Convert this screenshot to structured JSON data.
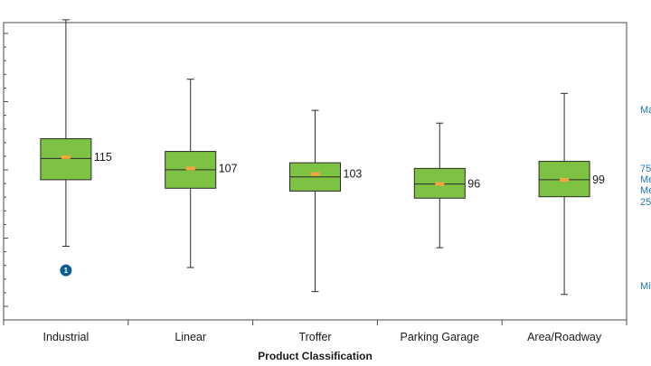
{
  "chart_data": {
    "type": "box",
    "xlabel": "Product Classification",
    "ylabel": "",
    "ylim": [
      0,
      210
    ],
    "grid": false,
    "colors": {
      "box": "#7dc242",
      "box_border": "#2b2b2b",
      "mean_marker": "#f7a541",
      "whisker": "#2b2b2b",
      "outlier": "#0b5e8f",
      "legend_text": "#1f78b4"
    },
    "categories": [
      "Industrial",
      "Linear",
      "Troffer",
      "Parking Garage",
      "Area/Roadway"
    ],
    "boxes": [
      {
        "category": "Industrial",
        "min": 52,
        "q1": 99,
        "median": 114,
        "mean": 115,
        "q3": 128,
        "max": 212,
        "value_label": "115"
      },
      {
        "category": "Linear",
        "min": 37,
        "q1": 93,
        "median": 106,
        "mean": 107,
        "q3": 119,
        "max": 170,
        "value_label": "107"
      },
      {
        "category": "Troffer",
        "min": 20,
        "q1": 91,
        "median": 101,
        "mean": 103,
        "q3": 111,
        "max": 148,
        "value_label": "103"
      },
      {
        "category": "Parking Garage",
        "min": 51,
        "q1": 86,
        "median": 96,
        "mean": 96,
        "q3": 107,
        "max": 139,
        "value_label": "96"
      },
      {
        "category": "Area/Roadway",
        "min": 18,
        "q1": 87,
        "median": 99,
        "mean": 99,
        "q3": 112,
        "max": 160,
        "value_label": "99"
      }
    ],
    "outliers": [
      {
        "category": "Industrial",
        "y": 35,
        "label": "1"
      }
    ],
    "legend": {
      "placement": "right",
      "entries": [
        "Ma",
        "75",
        "Me",
        "Me",
        "25",
        "Mi"
      ]
    }
  }
}
